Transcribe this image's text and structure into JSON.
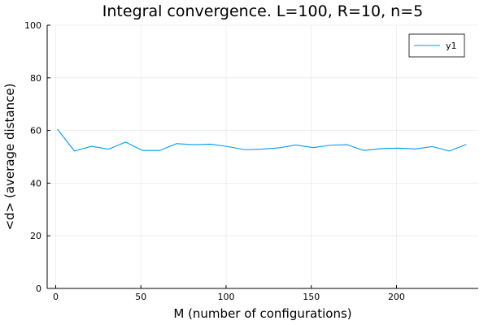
{
  "chart_data": {
    "type": "line",
    "title": "Integral convergence. L=100, R=10, n=5",
    "xlabel": "M (number of configurations)",
    "ylabel": "<d> (average distance)",
    "xlim": [
      -5,
      248
    ],
    "ylim": [
      0,
      100
    ],
    "xticks": [
      0,
      50,
      100,
      150,
      200
    ],
    "yticks": [
      0,
      20,
      40,
      60,
      80,
      100
    ],
    "grid": true,
    "legend_position": "top-right",
    "series": [
      {
        "name": "y1",
        "color": "#009af9",
        "x": [
          1,
          11,
          21,
          31,
          41,
          51,
          61,
          71,
          81,
          91,
          101,
          111,
          121,
          131,
          141,
          151,
          161,
          171,
          181,
          191,
          201,
          211,
          221,
          231,
          241
        ],
        "y": [
          60.5,
          52.2,
          54.0,
          52.9,
          55.6,
          52.4,
          52.4,
          55.0,
          54.6,
          54.8,
          53.9,
          52.7,
          52.9,
          53.4,
          54.5,
          53.5,
          54.4,
          54.6,
          52.4,
          53.1,
          53.3,
          53.0,
          53.9,
          52.2,
          54.7
        ]
      }
    ]
  }
}
